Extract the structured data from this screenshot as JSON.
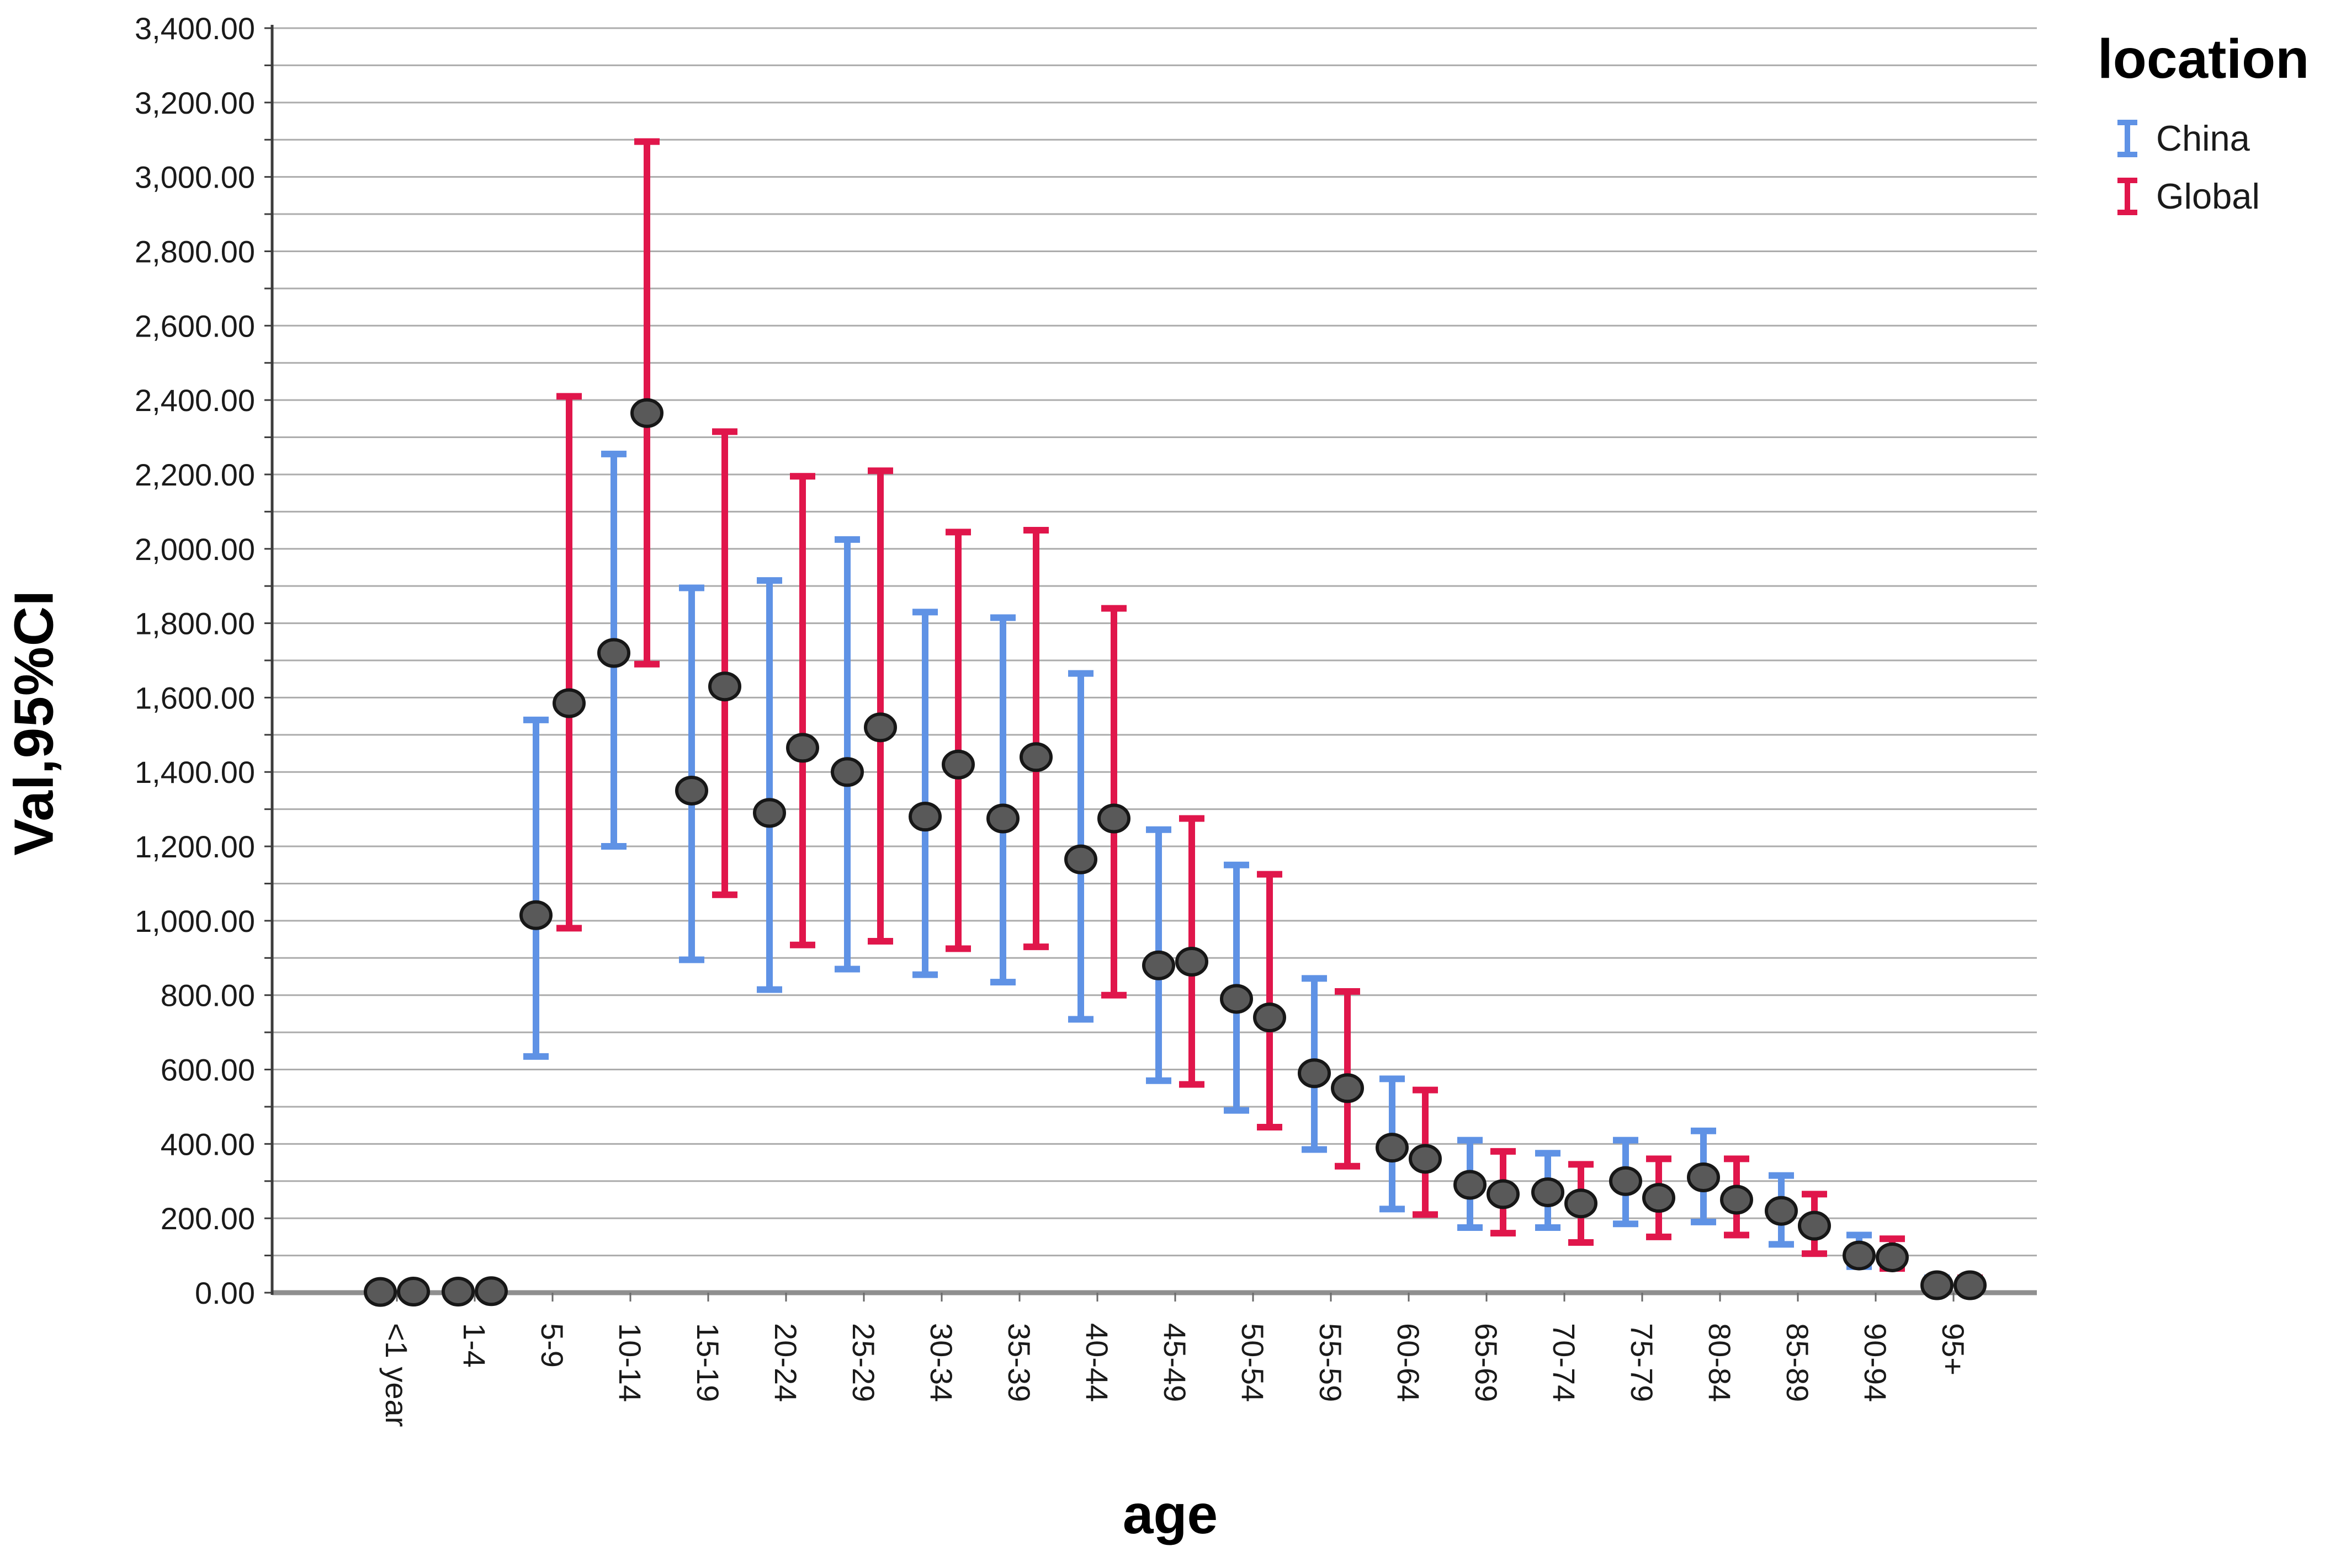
{
  "legend": {
    "title": "location",
    "entries": [
      {
        "label": "China",
        "color": "#5F92E5"
      },
      {
        "label": "Global",
        "color": "#E0164B"
      }
    ]
  },
  "chart_data": {
    "type": "errorbar",
    "title": "",
    "xlabel": "age",
    "ylabel": "Val,95%CI",
    "ylim": [
      0,
      3400
    ],
    "y_grid_step": 100,
    "y_label_step": 200,
    "grid": "horizontal",
    "legend_position": "top-right",
    "y_tick_labels": [
      "0.00",
      "200.00",
      "400.00",
      "600.00",
      "800.00",
      "1,000.00",
      "1,200.00",
      "1,400.00",
      "1,600.00",
      "1,800.00",
      "2,000.00",
      "2,200.00",
      "2,400.00",
      "2,600.00",
      "2,800.00",
      "3,000.00",
      "3,200.00",
      "3,400.00"
    ],
    "categories": [
      "<1 year",
      "1-4",
      "5-9",
      "10-14",
      "15-19",
      "20-24",
      "25-29",
      "30-34",
      "35-39",
      "40-44",
      "45-49",
      "50-54",
      "55-59",
      "60-64",
      "65-69",
      "70-74",
      "75-79",
      "80-84",
      "85-89",
      "90-94",
      "95+"
    ],
    "series": [
      {
        "name": "China",
        "color": "#5F92E5",
        "means": [
          2,
          3,
          1015,
          1720,
          1350,
          1290,
          1400,
          1280,
          1275,
          1165,
          880,
          790,
          590,
          390,
          290,
          270,
          300,
          310,
          220,
          100,
          20
        ],
        "ci_low": [
          0,
          0,
          635,
          1200,
          895,
          815,
          870,
          855,
          835,
          735,
          570,
          490,
          385,
          225,
          175,
          175,
          185,
          190,
          130,
          70,
          5
        ],
        "ci_high": [
          5,
          7,
          1540,
          2255,
          1895,
          1915,
          2025,
          1830,
          1815,
          1665,
          1245,
          1150,
          845,
          575,
          410,
          375,
          410,
          435,
          315,
          155,
          40
        ]
      },
      {
        "name": "Global",
        "color": "#E0164B",
        "means": [
          3,
          4,
          1585,
          2365,
          1630,
          1465,
          1520,
          1420,
          1440,
          1275,
          890,
          740,
          550,
          360,
          265,
          240,
          255,
          250,
          180,
          95,
          20
        ],
        "ci_low": [
          0,
          0,
          980,
          1690,
          1070,
          935,
          945,
          925,
          930,
          800,
          560,
          445,
          340,
          210,
          160,
          135,
          150,
          155,
          105,
          65,
          5
        ],
        "ci_high": [
          6,
          9,
          2410,
          3095,
          2315,
          2195,
          2210,
          2045,
          2050,
          1840,
          1275,
          1125,
          810,
          545,
          380,
          345,
          360,
          360,
          265,
          145,
          40
        ]
      }
    ],
    "marker": {
      "shape": "circle",
      "fill": "#595959",
      "outline": "#171717"
    }
  }
}
